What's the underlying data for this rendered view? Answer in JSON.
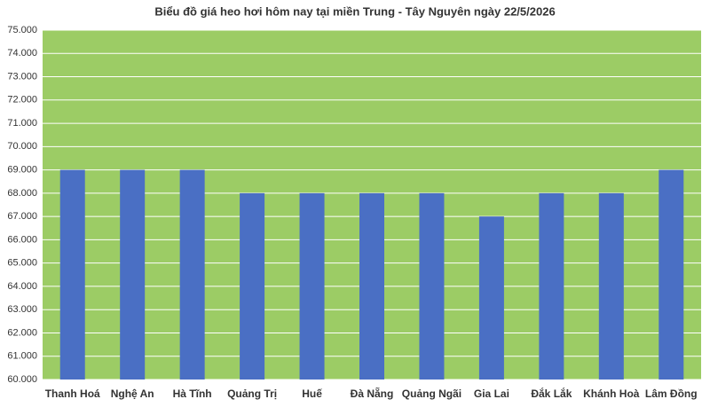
{
  "chart_data": {
    "type": "bar",
    "title": "Biểu đồ giá heo hơi hôm nay tại miền Trung - Tây Nguyên ngày 22/5/2026",
    "categories": [
      "Thanh Hoá",
      "Nghệ An",
      "Hà Tĩnh",
      "Quảng Trị",
      "Huế",
      "Đà Nẵng",
      "Quảng Ngãi",
      "Gia Lai",
      "Đắk Lắk",
      "Khánh Hoà",
      "Lâm Đồng"
    ],
    "values": [
      69000,
      69000,
      69000,
      68000,
      68000,
      68000,
      68000,
      67000,
      68000,
      68000,
      69000
    ],
    "color": "#4a6fc4",
    "background": "#9ccc65",
    "ylim": [
      60000,
      75000
    ],
    "yticks": [
      {
        "value": 60000,
        "label": "60.000"
      },
      {
        "value": 61000,
        "label": "61.000"
      },
      {
        "value": 62000,
        "label": "62.000"
      },
      {
        "value": 63000,
        "label": "63.000"
      },
      {
        "value": 64000,
        "label": "64.000"
      },
      {
        "value": 65000,
        "label": "65.000"
      },
      {
        "value": 66000,
        "label": "66.000"
      },
      {
        "value": 67000,
        "label": "67.000"
      },
      {
        "value": 68000,
        "label": "68.000"
      },
      {
        "value": 69000,
        "label": "69.000"
      },
      {
        "value": 70000,
        "label": "70.000"
      },
      {
        "value": 71000,
        "label": "71.000"
      },
      {
        "value": 72000,
        "label": "72.000"
      },
      {
        "value": 73000,
        "label": "73.000"
      },
      {
        "value": 74000,
        "label": "74.000"
      },
      {
        "value": 75000,
        "label": "75.000"
      }
    ],
    "grid": true
  }
}
